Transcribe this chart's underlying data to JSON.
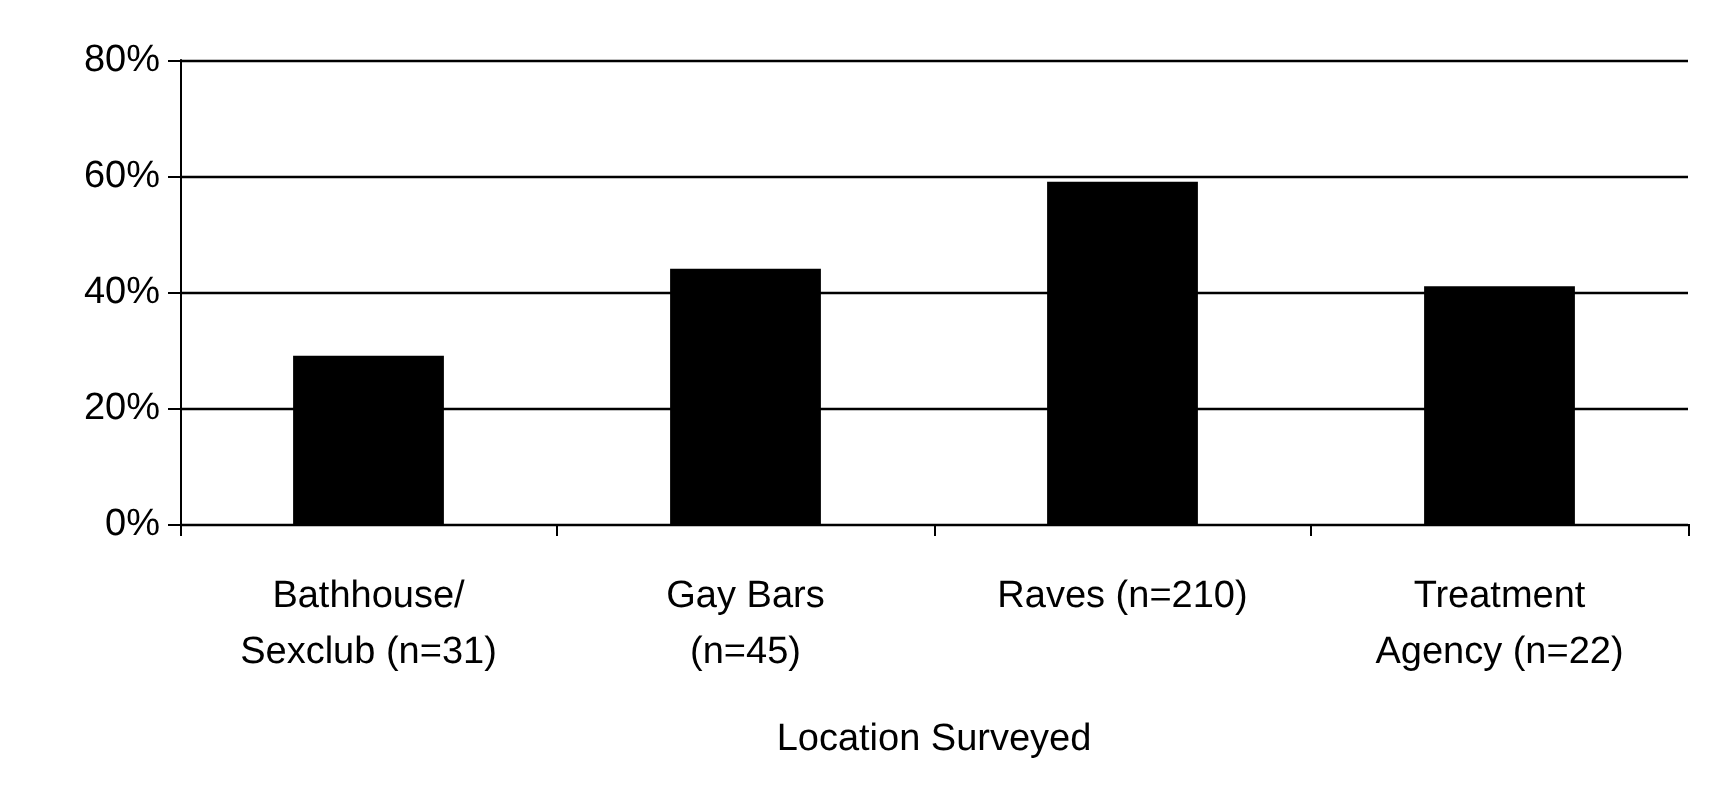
{
  "chart_data": {
    "type": "bar",
    "xlabel": "Location Surveyed",
    "categories": [
      "Bathhouse/\nSexclub (n=31)",
      "Gay Bars\n(n=45)",
      "Raves (n=210)",
      "Treatment\nAgency (n=22)"
    ],
    "values": [
      29,
      44,
      59,
      41
    ],
    "color": "#000000",
    "ylim": [
      0,
      80
    ],
    "yticks": [
      {
        "value": 0,
        "label": "0%"
      },
      {
        "value": 20,
        "label": "20%"
      },
      {
        "value": 40,
        "label": "40%"
      },
      {
        "value": 60,
        "label": "60%"
      },
      {
        "value": 80,
        "label": "80%"
      }
    ],
    "grid": true
  }
}
